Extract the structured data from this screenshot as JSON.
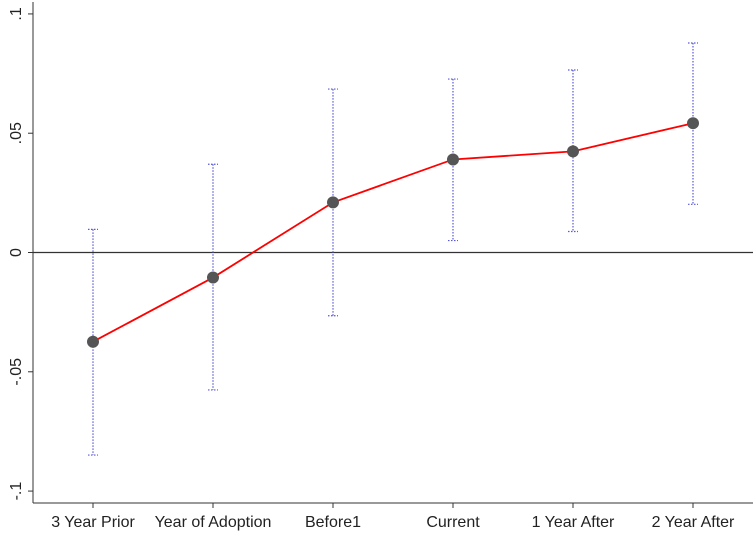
{
  "chart_data": {
    "type": "errorline",
    "categories": [
      "3 Year Prior",
      "Year of Adoption",
      "Before1",
      "Current",
      "1 Year After",
      "2 Year After"
    ],
    "values": [
      -0.0374,
      -0.0105,
      0.021,
      0.039,
      0.0424,
      0.0542
    ],
    "upper": [
      0.0097,
      0.037,
      0.0685,
      0.0727,
      0.0765,
      0.0878
    ],
    "lower": [
      -0.0849,
      -0.0576,
      -0.0265,
      0.005,
      0.0088,
      0.0202
    ],
    "color": "#ff0000",
    "marker_color": "#555555",
    "error_color": "#5a5ad6",
    "ylim": [
      -0.105,
      0.105
    ],
    "yticks": [
      {
        "value": -0.1,
        "label": "-.1"
      },
      {
        "value": -0.05,
        "label": "-.05"
      },
      0,
      {
        "value": 0.05,
        "label": ".05"
      },
      {
        "value": 0.1,
        "label": ".1"
      }
    ],
    "yline": 0
  }
}
